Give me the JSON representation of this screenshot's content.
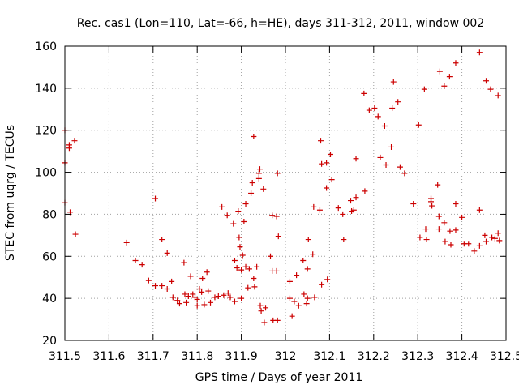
{
  "chart_data": {
    "type": "scatter",
    "title": "Rec. cas1 (Lon=110, Lat=-66, h=HE), days 311-312, 2011, window 002",
    "xlabel": "GPS time / Days of year 2011",
    "ylabel": "STEC from uqrg / TECUs",
    "xlim": [
      311.5,
      312.5
    ],
    "ylim": [
      20,
      160
    ],
    "xticks": [
      "311.5",
      "311.6",
      "311.7",
      "311.8",
      "311.9",
      "312",
      "312.1",
      "312.2",
      "312.3",
      "312.4",
      "312.5"
    ],
    "yticks": [
      "20",
      "40",
      "60",
      "80",
      "100",
      "120",
      "140",
      "160"
    ],
    "grid": true,
    "marker": "plus",
    "color": "#cc0000",
    "points": [
      [
        311.5,
        120
      ],
      [
        311.5,
        104.5
      ],
      [
        311.5,
        85.5
      ],
      [
        311.51,
        113
      ],
      [
        311.51,
        111.5
      ],
      [
        311.512,
        81
      ],
      [
        311.522,
        115
      ],
      [
        311.524,
        70.5
      ],
      [
        311.64,
        66.5
      ],
      [
        311.66,
        58
      ],
      [
        311.675,
        56
      ],
      [
        311.69,
        48.5
      ],
      [
        311.705,
        87.5
      ],
      [
        311.705,
        46
      ],
      [
        311.72,
        68
      ],
      [
        311.72,
        46
      ],
      [
        311.732,
        61.5
      ],
      [
        311.732,
        44.5
      ],
      [
        311.742,
        48
      ],
      [
        311.745,
        40.5
      ],
      [
        311.755,
        39
      ],
      [
        311.76,
        37.5
      ],
      [
        311.77,
        57
      ],
      [
        311.772,
        42
      ],
      [
        311.775,
        38
      ],
      [
        311.78,
        41
      ],
      [
        311.785,
        50.5
      ],
      [
        311.79,
        42
      ],
      [
        311.795,
        40.5
      ],
      [
        311.8,
        36.5
      ],
      [
        311.8,
        39.5
      ],
      [
        311.805,
        44.5
      ],
      [
        311.81,
        43
      ],
      [
        311.812,
        49.5
      ],
      [
        311.816,
        37
      ],
      [
        311.822,
        52.5
      ],
      [
        311.825,
        43.5
      ],
      [
        311.83,
        38
      ],
      [
        311.84,
        40.5
      ],
      [
        311.848,
        41
      ],
      [
        311.856,
        83.5
      ],
      [
        311.86,
        41.5
      ],
      [
        311.868,
        79.5
      ],
      [
        311.87,
        42.5
      ],
      [
        311.875,
        40.5
      ],
      [
        311.882,
        75.5
      ],
      [
        311.885,
        38.5
      ],
      [
        311.885,
        58
      ],
      [
        311.89,
        54.5
      ],
      [
        311.893,
        81.5
      ],
      [
        311.895,
        69
      ],
      [
        311.897,
        64.5
      ],
      [
        311.9,
        40
      ],
      [
        311.9,
        53.5
      ],
      [
        311.903,
        60.5
      ],
      [
        311.906,
        76.5
      ],
      [
        311.91,
        85
      ],
      [
        311.91,
        55
      ],
      [
        311.915,
        45
      ],
      [
        311.918,
        54
      ],
      [
        311.922,
        90
      ],
      [
        311.925,
        95
      ],
      [
        311.928,
        117
      ],
      [
        311.928,
        49.5
      ],
      [
        311.93,
        45.5
      ],
      [
        311.935,
        55
      ],
      [
        311.94,
        99.5
      ],
      [
        311.942,
        101.5
      ],
      [
        311.94,
        97
      ],
      [
        311.943,
        36.5
      ],
      [
        311.945,
        34
      ],
      [
        311.95,
        92
      ],
      [
        311.952,
        28.5
      ],
      [
        311.955,
        35.5
      ],
      [
        311.966,
        60
      ],
      [
        311.97,
        53
      ],
      [
        311.97,
        79.5
      ],
      [
        311.972,
        29.5
      ],
      [
        311.98,
        79
      ],
      [
        311.98,
        53
      ],
      [
        311.982,
        99.5
      ],
      [
        311.982,
        29.5
      ],
      [
        311.984,
        69.5
      ],
      [
        312.01,
        48
      ],
      [
        312.01,
        40
      ],
      [
        312.015,
        31.5
      ],
      [
        312.02,
        38.5
      ],
      [
        312.025,
        51
      ],
      [
        312.03,
        36.5
      ],
      [
        312.04,
        58
      ],
      [
        312.042,
        42
      ],
      [
        312.048,
        37.5
      ],
      [
        312.05,
        54
      ],
      [
        312.05,
        40
      ],
      [
        312.052,
        68
      ],
      [
        312.062,
        61
      ],
      [
        312.064,
        83.5
      ],
      [
        312.066,
        40.5
      ],
      [
        312.078,
        82
      ],
      [
        312.08,
        115
      ],
      [
        312.082,
        104
      ],
      [
        312.082,
        46.5
      ],
      [
        312.093,
        104.5
      ],
      [
        312.093,
        92.5
      ],
      [
        312.095,
        49
      ],
      [
        312.102,
        108.5
      ],
      [
        312.105,
        96.5
      ],
      [
        312.12,
        83
      ],
      [
        312.13,
        80
      ],
      [
        312.132,
        68
      ],
      [
        312.148,
        86.5
      ],
      [
        312.15,
        81.5
      ],
      [
        312.155,
        82
      ],
      [
        312.16,
        106.5
      ],
      [
        312.16,
        88
      ],
      [
        312.178,
        137.5
      ],
      [
        312.18,
        91
      ],
      [
        312.19,
        129.5
      ],
      [
        312.202,
        130.5
      ],
      [
        312.21,
        126.5
      ],
      [
        312.215,
        107
      ],
      [
        312.225,
        122
      ],
      [
        312.228,
        103.5
      ],
      [
        312.24,
        112
      ],
      [
        312.242,
        130.5
      ],
      [
        312.245,
        143
      ],
      [
        312.255,
        133.5
      ],
      [
        312.26,
        102.5
      ],
      [
        312.27,
        99.5
      ],
      [
        312.29,
        85
      ],
      [
        312.302,
        122.5
      ],
      [
        312.305,
        69
      ],
      [
        312.315,
        139.5
      ],
      [
        312.318,
        73
      ],
      [
        312.32,
        68
      ],
      [
        312.33,
        87.5
      ],
      [
        312.33,
        86
      ],
      [
        312.332,
        84
      ],
      [
        312.345,
        94
      ],
      [
        312.348,
        79
      ],
      [
        312.348,
        73
      ],
      [
        312.35,
        148
      ],
      [
        312.36,
        141
      ],
      [
        312.36,
        76
      ],
      [
        312.362,
        67
      ],
      [
        312.372,
        145.5
      ],
      [
        312.373,
        72
      ],
      [
        312.375,
        65.5
      ],
      [
        312.386,
        152
      ],
      [
        312.386,
        72.5
      ],
      [
        312.386,
        85
      ],
      [
        312.4,
        78.5
      ],
      [
        312.405,
        66
      ],
      [
        312.415,
        66
      ],
      [
        312.428,
        62.5
      ],
      [
        312.44,
        65
      ],
      [
        312.44,
        157
      ],
      [
        312.44,
        82
      ],
      [
        312.452,
        70
      ],
      [
        312.455,
        67
      ],
      [
        312.455,
        143.5
      ],
      [
        312.465,
        139.5
      ],
      [
        312.468,
        69
      ],
      [
        312.475,
        68.5
      ],
      [
        312.482,
        136.5
      ],
      [
        312.482,
        71
      ],
      [
        312.485,
        67.5
      ]
    ]
  }
}
